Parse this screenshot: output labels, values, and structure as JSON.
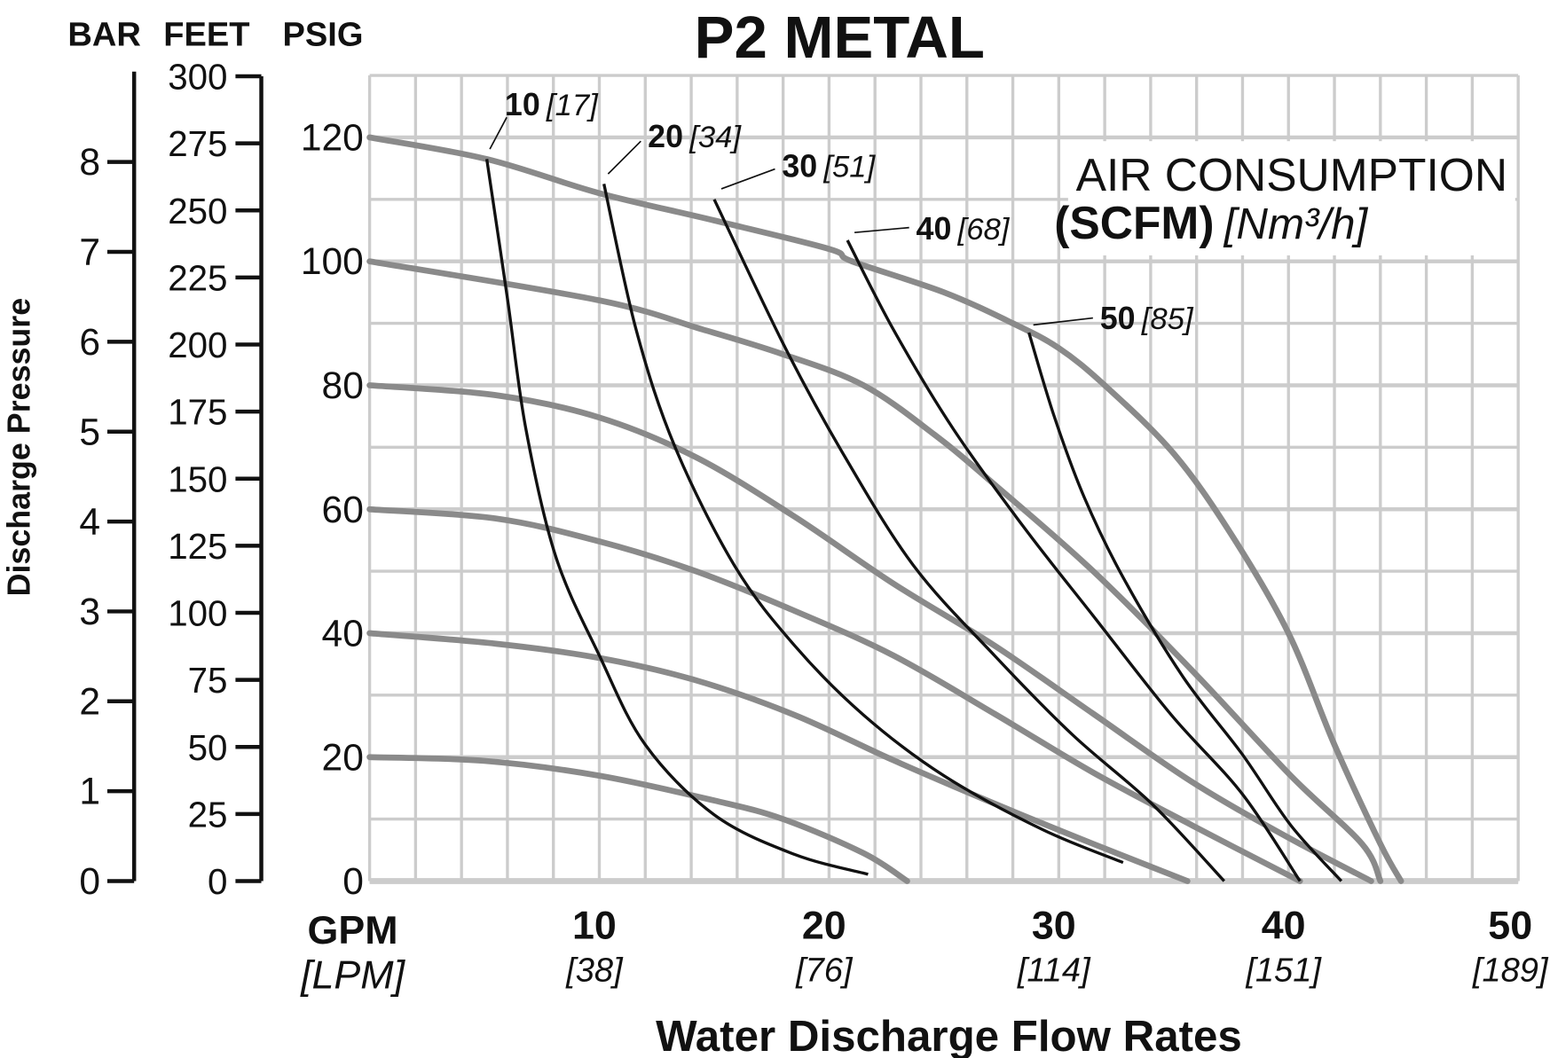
{
  "chart_data": {
    "type": "line",
    "title": "P2 METAL",
    "xlabel": "Water Discharge Flow Rates",
    "ylabel": "Discharge Pressure",
    "x_unit_label": "GPM",
    "x_unit_label_alt": "[LPM]",
    "xlim": [
      0,
      50
    ],
    "ylim": [
      0,
      130
    ],
    "grid": true,
    "x_ticks": [
      {
        "value": 10,
        "label": "10",
        "alt": "[38]"
      },
      {
        "value": 20,
        "label": "20",
        "alt": "[76]"
      },
      {
        "value": 30,
        "label": "30",
        "alt": "[114]"
      },
      {
        "value": 40,
        "label": "40",
        "alt": "[151]"
      },
      {
        "value": 50,
        "label": "50",
        "alt": "[189]"
      }
    ],
    "y_axes": {
      "psig": {
        "header": "PSIG",
        "ticks": [
          "0",
          "20",
          "40",
          "60",
          "80",
          "100",
          "120"
        ]
      },
      "feet": {
        "header": "FEET",
        "ticks": [
          "0",
          "25",
          "50",
          "75",
          "100",
          "125",
          "150",
          "175",
          "200",
          "225",
          "250",
          "275",
          "300"
        ]
      },
      "bar": {
        "header": "BAR",
        "ticks": [
          "0",
          "1",
          "2",
          "3",
          "4",
          "5",
          "6",
          "7",
          "8"
        ]
      }
    },
    "annotation": {
      "line1": "AIR CONSUMPTION",
      "line2_bold": "(SCFM)",
      "line2_italic": "[Nm³/h]"
    },
    "pressure_curves": [
      {
        "name": "20 psig",
        "points": [
          [
            0,
            20
          ],
          [
            5,
            19.4
          ],
          [
            10,
            17
          ],
          [
            15,
            13
          ],
          [
            18,
            10
          ],
          [
            21.5,
            4.5
          ],
          [
            23.4,
            0
          ]
        ]
      },
      {
        "name": "40 psig",
        "points": [
          [
            0,
            40
          ],
          [
            5.5,
            38.3
          ],
          [
            10,
            36
          ],
          [
            14.2,
            32.4
          ],
          [
            18.5,
            26.8
          ],
          [
            22.8,
            19.5
          ],
          [
            27.2,
            12.5
          ],
          [
            31.5,
            6
          ],
          [
            35.6,
            0
          ]
        ]
      },
      {
        "name": "60 psig",
        "points": [
          [
            0,
            60
          ],
          [
            5.5,
            58.5
          ],
          [
            10,
            54.8
          ],
          [
            14.2,
            50
          ],
          [
            18.5,
            43.6
          ],
          [
            22.8,
            36.4
          ],
          [
            27.2,
            27
          ],
          [
            31.5,
            17.5
          ],
          [
            35.8,
            9
          ],
          [
            40.5,
            0
          ]
        ]
      },
      {
        "name": "80 psig",
        "points": [
          [
            0,
            80
          ],
          [
            5.5,
            78.4
          ],
          [
            10,
            74.8
          ],
          [
            14.2,
            68.4
          ],
          [
            18.5,
            58.8
          ],
          [
            22.8,
            48
          ],
          [
            27.2,
            38
          ],
          [
            31.5,
            27
          ],
          [
            35.8,
            16
          ],
          [
            40,
            7
          ],
          [
            43.6,
            0
          ]
        ]
      },
      {
        "name": "100 psig",
        "points": [
          [
            0,
            100
          ],
          [
            10,
            93.7
          ],
          [
            14.5,
            89
          ],
          [
            18,
            85
          ],
          [
            21.5,
            80
          ],
          [
            24.6,
            72
          ],
          [
            27.2,
            64
          ],
          [
            31.5,
            50
          ],
          [
            35.8,
            34
          ],
          [
            40.1,
            17
          ],
          [
            43.2,
            6
          ],
          [
            44,
            0
          ]
        ]
      },
      {
        "name": "120 psig",
        "points": [
          [
            0,
            120
          ],
          [
            5.1,
            116.5
          ],
          [
            10,
            111
          ],
          [
            15,
            106.6
          ],
          [
            20,
            102
          ],
          [
            21,
            100
          ],
          [
            25,
            95
          ],
          [
            28,
            90
          ],
          [
            30,
            86
          ],
          [
            32,
            80
          ],
          [
            35,
            69
          ],
          [
            37.5,
            56
          ],
          [
            40,
            40
          ],
          [
            42,
            22
          ],
          [
            44,
            6
          ],
          [
            44.9,
            0
          ]
        ]
      }
    ],
    "air_consumption_curves": [
      {
        "label": "10",
        "alt": "[17]",
        "points": [
          [
            5.1,
            116.5
          ],
          [
            6,
            94
          ],
          [
            6.8,
            73
          ],
          [
            8.1,
            52.4
          ],
          [
            10,
            36.4
          ],
          [
            12,
            22
          ],
          [
            15,
            10.7
          ],
          [
            18.5,
            4.3
          ],
          [
            21.7,
            1.1
          ]
        ]
      },
      {
        "label": "20",
        "alt": "[34]",
        "points": [
          [
            10.2,
            112.5
          ],
          [
            11.6,
            89
          ],
          [
            13.3,
            70
          ],
          [
            15.9,
            50.8
          ],
          [
            18.5,
            38
          ],
          [
            21.5,
            26.8
          ],
          [
            25,
            17
          ],
          [
            29.3,
            8.3
          ],
          [
            32.8,
            3
          ]
        ]
      },
      {
        "label": "30",
        "alt": "[51]",
        "points": [
          [
            15,
            110
          ],
          [
            18.1,
            86
          ],
          [
            20.7,
            68.4
          ],
          [
            23.7,
            50.8
          ],
          [
            27.2,
            36.4
          ],
          [
            30.6,
            23.6
          ],
          [
            34.1,
            12.3
          ],
          [
            37.2,
            0
          ]
        ]
      },
      {
        "label": "40",
        "alt": "[68]",
        "points": [
          [
            20.8,
            103.4
          ],
          [
            22.8,
            89
          ],
          [
            25.4,
            73
          ],
          [
            28.5,
            57
          ],
          [
            31.5,
            42.8
          ],
          [
            34.9,
            26.8
          ],
          [
            38,
            14
          ],
          [
            40.5,
            0
          ]
        ]
      },
      {
        "label": "50",
        "alt": "[85]",
        "points": [
          [
            28.7,
            88.5
          ],
          [
            29.8,
            75
          ],
          [
            31.1,
            62
          ],
          [
            32.8,
            49
          ],
          [
            35.4,
            33
          ],
          [
            38,
            20.4
          ],
          [
            40.1,
            9
          ],
          [
            42.3,
            0
          ]
        ]
      }
    ],
    "colors": {
      "grid": "#cccccc",
      "pressure": "#8a8a8a",
      "air": "#111111"
    }
  }
}
